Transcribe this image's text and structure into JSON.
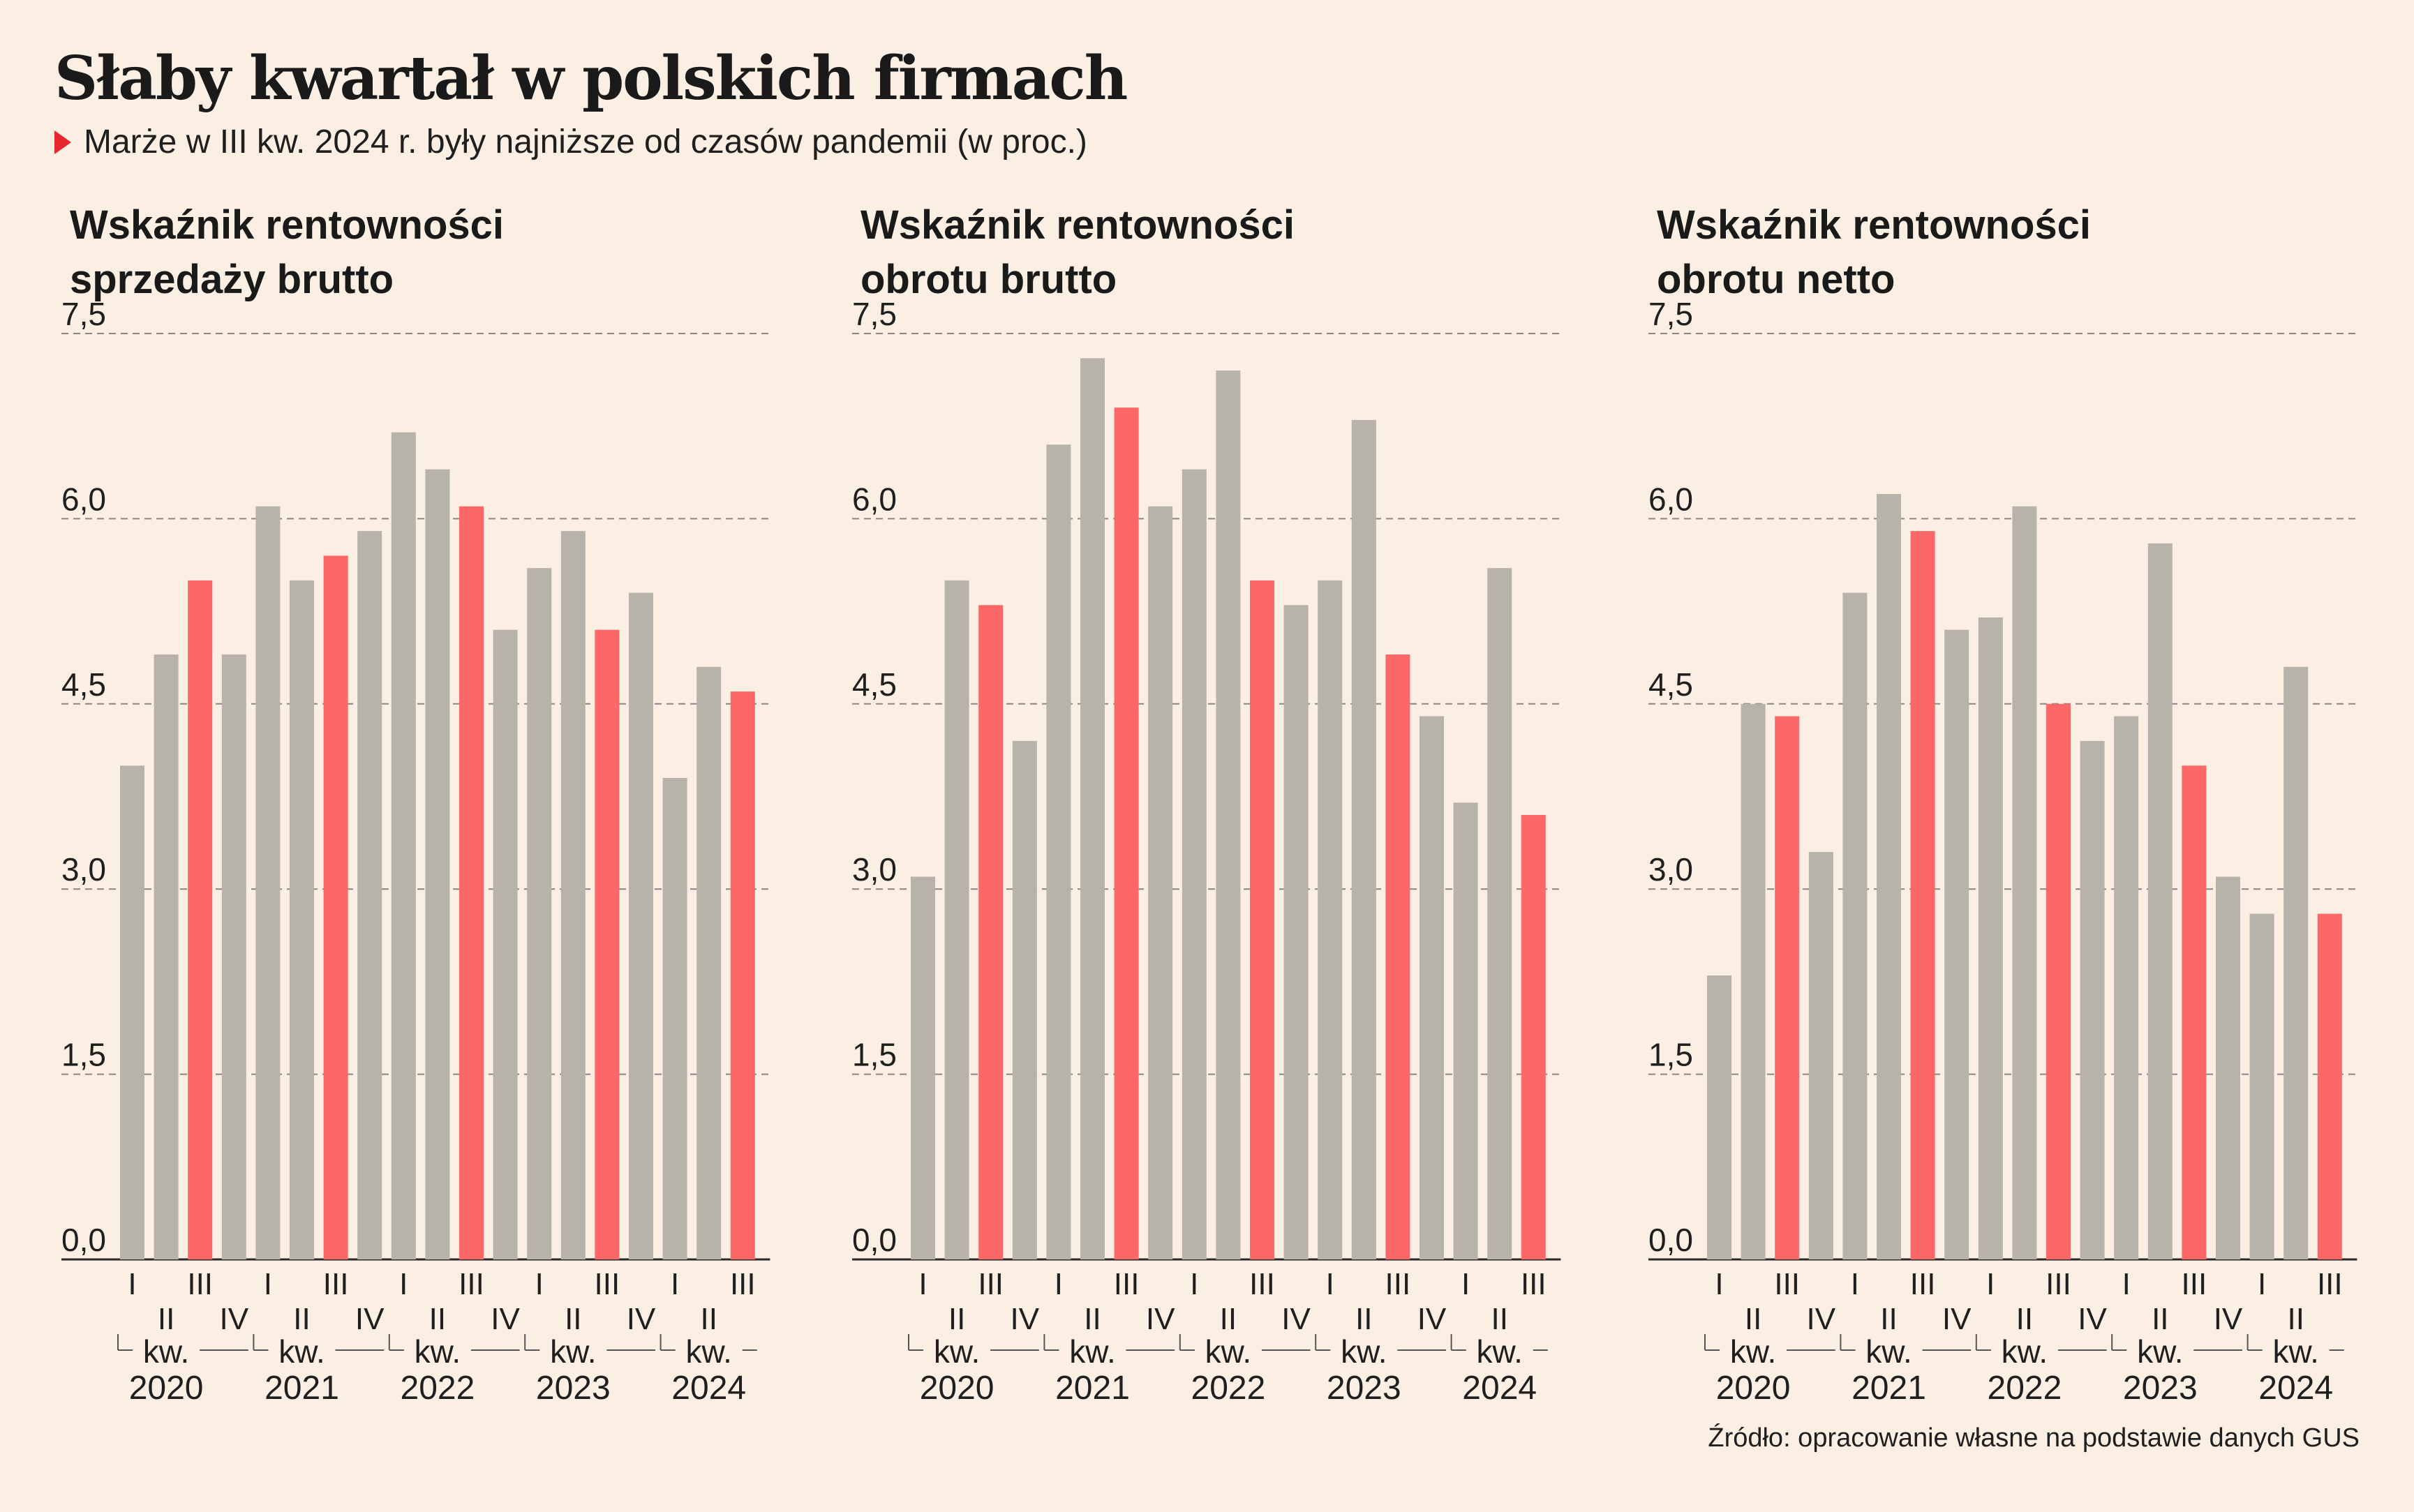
{
  "header": {
    "title": "Słaby kwartał w polskich firmach",
    "subtitle": "Marże w III kw. 2024 r. były najniższe od czasów pandemii (w proc.)"
  },
  "source": "Źródło: opracowanie własne na podstawie danych GUS",
  "colors": {
    "normal": "#b7b2aa",
    "highlight": "#fc6867",
    "background": "#fbeee2",
    "grid": "#8c8680"
  },
  "chart_data": [
    {
      "type": "bar",
      "title_lines": [
        "Wskaźnik rentowności",
        "sprzedaży brutto"
      ],
      "ylim": [
        0,
        7.5
      ],
      "yticks": [
        "0,0",
        "1,5",
        "3,0",
        "4,5",
        "6,0",
        "7,5"
      ],
      "quarter_labels": [
        "I",
        "II",
        "III",
        "IV",
        "I",
        "II",
        "III",
        "IV",
        "I",
        "II",
        "III",
        "IV",
        "I",
        "II",
        "III",
        "IV",
        "I",
        "II",
        "III"
      ],
      "year_prefix": "kw.",
      "years": [
        "2020",
        "2021",
        "2022",
        "2023",
        "2024"
      ],
      "highlight_index": [
        2,
        6,
        10,
        14,
        18
      ],
      "values": [
        4.0,
        4.9,
        5.5,
        4.9,
        6.1,
        5.5,
        5.7,
        5.9,
        6.7,
        6.4,
        6.1,
        5.1,
        5.6,
        5.9,
        5.1,
        5.4,
        3.9,
        4.8,
        4.6
      ]
    },
    {
      "type": "bar",
      "title_lines": [
        "Wskaźnik rentowności",
        "obrotu brutto"
      ],
      "ylim": [
        0,
        7.5
      ],
      "yticks": [
        "0,0",
        "1,5",
        "3,0",
        "4,5",
        "6,0",
        "7,5"
      ],
      "quarter_labels": [
        "I",
        "II",
        "III",
        "IV",
        "I",
        "II",
        "III",
        "IV",
        "I",
        "II",
        "III",
        "IV",
        "I",
        "II",
        "III",
        "IV",
        "I",
        "II",
        "III"
      ],
      "year_prefix": "kw.",
      "years": [
        "2020",
        "2021",
        "2022",
        "2023",
        "2024"
      ],
      "highlight_index": [
        2,
        6,
        10,
        14,
        18
      ],
      "values": [
        3.1,
        5.5,
        5.3,
        4.2,
        6.6,
        7.3,
        6.9,
        6.1,
        6.4,
        7.2,
        5.5,
        5.3,
        5.5,
        6.8,
        4.9,
        4.4,
        3.7,
        5.6,
        3.6
      ]
    },
    {
      "type": "bar",
      "title_lines": [
        "Wskaźnik rentowności",
        "obrotu netto"
      ],
      "ylim": [
        0,
        7.5
      ],
      "yticks": [
        "0,0",
        "1,5",
        "3,0",
        "4,5",
        "6,0",
        "7,5"
      ],
      "quarter_labels": [
        "I",
        "II",
        "III",
        "IV",
        "I",
        "II",
        "III",
        "IV",
        "I",
        "II",
        "III",
        "IV",
        "I",
        "II",
        "III",
        "IV",
        "I",
        "II",
        "III"
      ],
      "year_prefix": "kw.",
      "years": [
        "2020",
        "2021",
        "2022",
        "2023",
        "2024"
      ],
      "highlight_index": [
        2,
        6,
        10,
        14,
        18
      ],
      "values": [
        2.3,
        4.5,
        4.4,
        3.3,
        5.4,
        6.2,
        5.9,
        5.1,
        5.2,
        6.1,
        4.5,
        4.2,
        4.4,
        5.8,
        4.0,
        3.1,
        2.8,
        4.8,
        2.8
      ]
    }
  ]
}
